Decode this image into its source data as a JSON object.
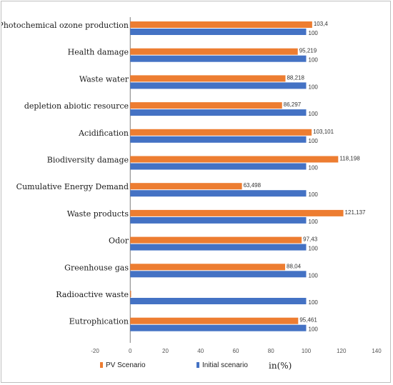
{
  "chart_data": {
    "type": "bar",
    "orientation": "horizontal",
    "categories": [
      "Photochemical ozone production",
      "Health damage",
      "Waste water",
      "depletion abiotic resource",
      "Acidification",
      "Biodiversity damage",
      "Cumulative Energy Demand",
      "Waste products",
      "Odor",
      "Greenhouse gas",
      "Radioactive waste",
      "Eutrophication"
    ],
    "series": [
      {
        "name": "PV Scenario",
        "color": "#ED7D31",
        "values": [
          103.4,
          95.219,
          88.218,
          86.297,
          103.101,
          118.198,
          63.498,
          121.137,
          97.43,
          88.04,
          0,
          95.461
        ],
        "labels": [
          "103,4",
          "95,219",
          "88,218",
          "86,297",
          "103,101",
          "118,198",
          "63,498",
          "121,137",
          "97,43",
          "88,04",
          "",
          "95,461"
        ]
      },
      {
        "name": "Initial scenario",
        "color": "#4472C4",
        "values": [
          100,
          100,
          100,
          100,
          100,
          100,
          100,
          100,
          100,
          100,
          100,
          100
        ],
        "labels": [
          "100",
          "100",
          "100",
          "100",
          "100",
          "100",
          "100",
          "100",
          "100",
          "100",
          "100",
          "100"
        ]
      }
    ],
    "xlim": [
      -20,
      140
    ],
    "xticks": [
      -20,
      0,
      20,
      40,
      60,
      80,
      100,
      120,
      140
    ],
    "xlabel": "in(%)",
    "grid": false,
    "legend_position": "bottom-left"
  }
}
